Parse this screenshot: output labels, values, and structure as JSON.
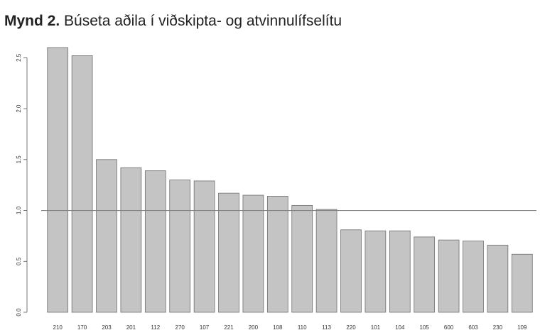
{
  "title": {
    "prefix": "Mynd 2.",
    "text": "Búseta aðila í viðskipta- og atvinnulífselítu"
  },
  "chart_data": {
    "type": "bar",
    "title": "Mynd 2. Búseta aðila í viðskipta- og atvinnulífselítu",
    "xlabel": "",
    "ylabel": "",
    "categories": [
      "210",
      "170",
      "203",
      "201",
      "112",
      "270",
      "107",
      "221",
      "200",
      "108",
      "110",
      "113",
      "220",
      "101",
      "104",
      "105",
      "600",
      "603",
      "230",
      "109"
    ],
    "values": [
      2.6,
      2.52,
      1.5,
      1.42,
      1.39,
      1.3,
      1.29,
      1.17,
      1.15,
      1.14,
      1.05,
      1.01,
      0.81,
      0.8,
      0.8,
      0.74,
      0.71,
      0.7,
      0.66,
      0.57
    ],
    "ylim": [
      0,
      2.6
    ],
    "yticks": [
      "0.0",
      "0.5",
      "1.0",
      "1.5",
      "2.0",
      "2.5"
    ],
    "reference_line": 1.0,
    "grid": false,
    "bar_color": "#c4c4c4",
    "bar_edge_color": "#6e6e6e",
    "reference_line_color": "#808080"
  }
}
